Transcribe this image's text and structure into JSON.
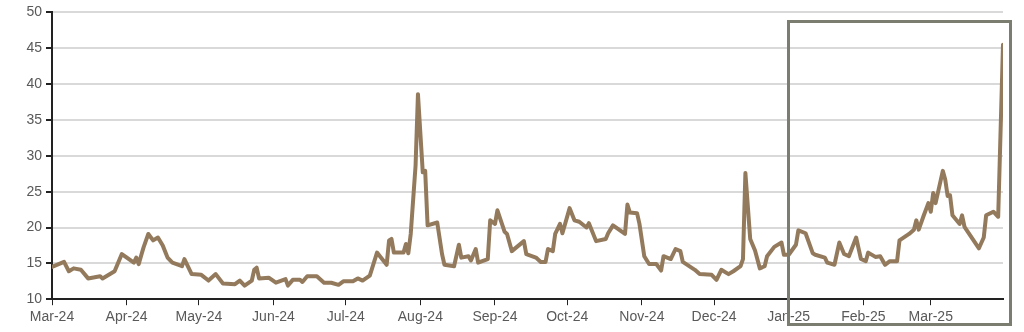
{
  "chart_data": {
    "type": "line",
    "x": [
      "2024-03-01",
      "2024-03-06",
      "2024-03-08",
      "2024-03-10",
      "2024-03-13",
      "2024-03-16",
      "2024-03-21",
      "2024-03-22",
      "2024-03-27",
      "2024-03-30",
      "2024-04-04",
      "2024-04-05",
      "2024-04-06",
      "2024-04-08",
      "2024-04-10",
      "2024-04-12",
      "2024-04-14",
      "2024-04-16",
      "2024-04-18",
      "2024-04-20",
      "2024-04-24",
      "2024-04-25",
      "2024-04-28",
      "2024-05-02",
      "2024-05-05",
      "2024-05-08",
      "2024-05-11",
      "2024-05-16",
      "2024-05-18",
      "2024-05-20",
      "2024-05-23",
      "2024-05-24",
      "2024-05-25",
      "2024-05-26",
      "2024-05-30",
      "2024-06-02",
      "2024-06-06",
      "2024-06-07",
      "2024-06-09",
      "2024-06-12",
      "2024-06-13",
      "2024-06-15",
      "2024-06-19",
      "2024-06-22",
      "2024-06-25",
      "2024-06-28",
      "2024-06-30",
      "2024-07-04",
      "2024-07-06",
      "2024-07-08",
      "2024-07-11",
      "2024-07-14",
      "2024-07-18",
      "2024-07-19",
      "2024-07-20",
      "2024-07-21",
      "2024-07-25",
      "2024-07-26",
      "2024-07-27",
      "2024-07-28",
      "2024-07-30",
      "2024-07-31",
      "2024-08-02",
      "2024-08-03",
      "2024-08-04",
      "2024-08-08",
      "2024-08-10",
      "2024-08-11",
      "2024-08-15",
      "2024-08-17",
      "2024-08-18",
      "2024-08-21",
      "2024-08-22",
      "2024-08-24",
      "2024-08-25",
      "2024-08-29",
      "2024-08-30",
      "2024-09-01",
      "2024-09-02",
      "2024-09-05",
      "2024-09-06",
      "2024-09-08",
      "2024-09-13",
      "2024-09-14",
      "2024-09-18",
      "2024-09-20",
      "2024-09-22",
      "2024-09-23",
      "2024-09-25",
      "2024-09-26",
      "2024-09-28",
      "2024-09-29",
      "2024-10-02",
      "2024-10-04",
      "2024-10-06",
      "2024-10-09",
      "2024-10-10",
      "2024-10-13",
      "2024-10-17",
      "2024-10-18",
      "2024-10-20",
      "2024-10-25",
      "2024-10-26",
      "2024-10-27",
      "2024-10-30",
      "2024-10-31",
      "2024-11-02",
      "2024-11-04",
      "2024-11-07",
      "2024-11-09",
      "2024-11-10",
      "2024-11-13",
      "2024-11-15",
      "2024-11-17",
      "2024-11-18",
      "2024-11-23",
      "2024-11-25",
      "2024-11-30",
      "2024-12-02",
      "2024-12-04",
      "2024-12-07",
      "2024-12-09",
      "2024-12-12",
      "2024-12-13",
      "2024-12-14",
      "2024-12-16",
      "2024-12-18",
      "2024-12-20",
      "2024-12-22",
      "2024-12-23",
      "2024-12-26",
      "2024-12-29",
      "2024-12-30",
      "2025-01-01",
      "2025-01-04",
      "2025-01-05",
      "2025-01-08",
      "2025-01-11",
      "2025-01-12",
      "2025-01-16",
      "2025-01-17",
      "2025-01-20",
      "2025-01-22",
      "2025-01-24",
      "2025-01-26",
      "2025-01-29",
      "2025-01-31",
      "2025-02-02",
      "2025-02-03",
      "2025-02-06",
      "2025-02-08",
      "2025-02-10",
      "2025-02-12",
      "2025-02-15",
      "2025-02-16",
      "2025-02-20",
      "2025-02-22",
      "2025-02-23",
      "2025-02-24",
      "2025-02-26",
      "2025-02-28",
      "2025-03-01",
      "2025-03-02",
      "2025-03-03",
      "2025-03-06",
      "2025-03-07",
      "2025-03-08",
      "2025-03-09",
      "2025-03-10",
      "2025-03-13",
      "2025-03-14",
      "2025-03-15",
      "2025-03-21",
      "2025-03-23",
      "2025-03-24",
      "2025-03-27",
      "2025-03-29",
      "2025-03-31"
    ],
    "series": [
      {
        "color": "#947a5c",
        "values": [
          14.5,
          15.2,
          13.9,
          14.3,
          14.1,
          12.9,
          13.2,
          12.9,
          13.9,
          16.3,
          15.1,
          15.8,
          14.9,
          17.2,
          19.1,
          18.2,
          18.6,
          17.5,
          15.8,
          15.1,
          14.6,
          15.6,
          13.5,
          13.4,
          12.6,
          13.5,
          12.2,
          12.1,
          12.6,
          11.9,
          12.6,
          14.1,
          14.4,
          12.9,
          13.0,
          12.3,
          12.8,
          11.9,
          12.7,
          12.7,
          12.4,
          13.2,
          13.2,
          12.3,
          12.3,
          12.0,
          12.5,
          12.5,
          12.9,
          12.6,
          13.3,
          16.5,
          14.8,
          18.2,
          18.4,
          16.5,
          16.5,
          17.7,
          16.4,
          19.1,
          28.6,
          38.6,
          27.7,
          27.9,
          20.3,
          20.7,
          16.3,
          14.8,
          14.6,
          17.6,
          15.8,
          16.0,
          15.4,
          17.0,
          15.1,
          15.6,
          21.0,
          20.5,
          22.4,
          19.4,
          19.1,
          16.7,
          18.1,
          16.3,
          15.8,
          15.2,
          15.2,
          17.0,
          16.7,
          19.1,
          20.5,
          19.2,
          22.7,
          21.0,
          20.8,
          20.0,
          20.6,
          18.1,
          18.4,
          19.2,
          20.3,
          19.1,
          23.2,
          22.1,
          22.0,
          20.5,
          16.0,
          14.9,
          14.9,
          14.0,
          16.0,
          15.6,
          17.0,
          16.7,
          15.2,
          14.1,
          13.5,
          13.4,
          12.7,
          14.1,
          13.5,
          13.9,
          14.6,
          15.6,
          27.6,
          18.4,
          16.8,
          14.3,
          14.6,
          16.0,
          17.3,
          17.9,
          16.2,
          16.2,
          17.6,
          19.6,
          19.2,
          16.4,
          16.2,
          15.8,
          15.1,
          14.8,
          17.9,
          16.3,
          16.0,
          18.6,
          15.6,
          15.3,
          16.5,
          15.9,
          16.0,
          14.8,
          15.3,
          15.3,
          18.2,
          19.1,
          19.7,
          21.0,
          19.7,
          21.6,
          23.4,
          22.2,
          24.8,
          23.4,
          27.9,
          26.7,
          24.4,
          24.5,
          21.7,
          20.5,
          21.7,
          20.1,
          17.1,
          18.6,
          21.7,
          22.2,
          21.5,
          45.5
        ]
      }
    ],
    "xlim": [
      "2024-03-01",
      "2025-03-31"
    ],
    "xticks": [
      {
        "value": "2024-03-01",
        "label": "Mar-24"
      },
      {
        "value": "2024-04-01",
        "label": "Apr-24"
      },
      {
        "value": "2024-05-01",
        "label": "May-24"
      },
      {
        "value": "2024-06-01",
        "label": "Jun-24"
      },
      {
        "value": "2024-07-01",
        "label": "Jul-24"
      },
      {
        "value": "2024-08-01",
        "label": "Aug-24"
      },
      {
        "value": "2024-09-01",
        "label": "Sep-24"
      },
      {
        "value": "2024-10-01",
        "label": "Oct-24"
      },
      {
        "value": "2024-11-01",
        "label": "Nov-24"
      },
      {
        "value": "2024-12-01",
        "label": "Dec-24"
      },
      {
        "value": "2025-01-01",
        "label": "Jan-25"
      },
      {
        "value": "2025-02-01",
        "label": "Feb-25"
      },
      {
        "value": "2025-03-01",
        "label": "Mar-25"
      }
    ],
    "ylim": [
      10,
      50
    ],
    "yticks": [
      10,
      15,
      20,
      25,
      30,
      35,
      40,
      45,
      50
    ],
    "grid": "y",
    "marker": "none",
    "line_style": "solid",
    "legend": false
  }
}
